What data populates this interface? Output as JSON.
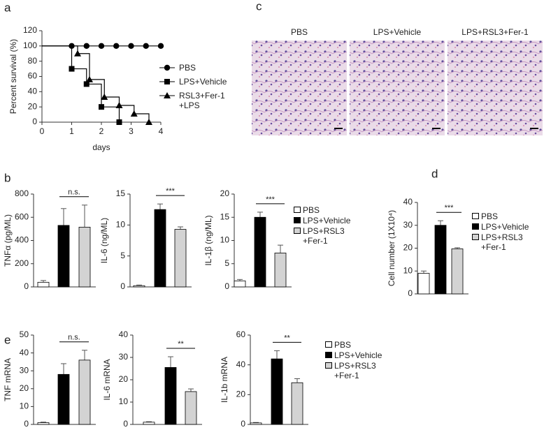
{
  "panel_labels": [
    "a",
    "b",
    "c",
    "d",
    "e"
  ],
  "histology": {
    "titles": [
      "PBS",
      "LPS+Vehicle",
      "LPS+RSL3+Fer-1"
    ]
  },
  "chart_data": [
    {
      "type": "step",
      "ylabel": "Percent survival (%)",
      "xlabel": "days",
      "xlim": [
        0,
        4
      ],
      "xticks": [
        0,
        1,
        2,
        3,
        4
      ],
      "ylim": [
        0,
        120
      ],
      "yticks": [
        0,
        20,
        40,
        60,
        80,
        100,
        120
      ],
      "series": [
        {
          "name": "PBS",
          "color": "#000000",
          "marker": "circle",
          "x": [
            0,
            1,
            1.5,
            2,
            2.5,
            3,
            3.5,
            4
          ],
          "values": [
            100,
            100,
            100,
            100,
            100,
            100,
            100,
            100
          ]
        },
        {
          "name": "LPS+Vehicle",
          "color": "#000000",
          "marker": "square",
          "x": [
            0,
            1,
            1.5,
            2,
            2.6
          ],
          "values": [
            100,
            70,
            50,
            20,
            0
          ]
        },
        {
          "name": "RSL3+Fer-1\n+LPS",
          "color": "#000000",
          "marker": "triangle",
          "x": [
            0,
            1.2,
            1.6,
            2.1,
            2.6,
            3.1,
            3.6
          ],
          "values": [
            100,
            90,
            56,
            33,
            22,
            11,
            0
          ]
        }
      ]
    },
    {
      "type": "bar",
      "ylabel": "TNFα (pg/ML)",
      "categories": [
        null,
        null,
        null
      ],
      "values": [
        40,
        530,
        515
      ],
      "errors": [
        15,
        145,
        190
      ],
      "colors": [
        "#ffffff",
        "#000000",
        "#d3d3d3"
      ],
      "ylim": [
        0,
        800
      ],
      "yticks": [
        0,
        200,
        400,
        600,
        800
      ],
      "annotation": "n.s."
    },
    {
      "type": "bar",
      "ylabel": "IL-6 (ng/ML)",
      "categories": [
        null,
        null,
        null
      ],
      "values": [
        0.2,
        12.5,
        9.3
      ],
      "errors": [
        0.1,
        0.9,
        0.4
      ],
      "colors": [
        "#ffffff",
        "#000000",
        "#d3d3d3"
      ],
      "ylim": [
        0,
        15
      ],
      "yticks": [
        0,
        5,
        10,
        15
      ],
      "annotation": "***"
    },
    {
      "type": "bar",
      "ylabel": "IL-1β (ng/ML)",
      "categories": [
        null,
        null,
        null
      ],
      "values": [
        1.3,
        15,
        7.3
      ],
      "errors": [
        0.3,
        1.1,
        1.7
      ],
      "colors": [
        "#ffffff",
        "#000000",
        "#d3d3d3"
      ],
      "ylim": [
        0,
        20
      ],
      "yticks": [
        0,
        5,
        10,
        15,
        20
      ],
      "annotation": "***",
      "legend": [
        "PBS",
        "LPS+Vehicle",
        "LPS+RSL3\n+Fer-1"
      ]
    },
    {
      "type": "bar",
      "ylabel": "Cell number (1X10⁴)",
      "categories": [
        null,
        null,
        null
      ],
      "values": [
        9,
        30,
        19.7
      ],
      "errors": [
        1,
        2,
        0.5
      ],
      "colors": [
        "#ffffff",
        "#000000",
        "#d3d3d3"
      ],
      "ylim": [
        0,
        40
      ],
      "yticks": [
        0,
        10,
        20,
        30,
        40
      ],
      "annotation": "***",
      "legend": [
        "PBS",
        "LPS+Vehicle",
        "LPS+RSL3\n+Fer-1"
      ]
    },
    {
      "type": "bar",
      "ylabel": "TNF mRNA",
      "categories": [
        null,
        null,
        null
      ],
      "values": [
        1,
        28,
        36
      ],
      "errors": [
        0.3,
        6,
        5.5
      ],
      "colors": [
        "#ffffff",
        "#000000",
        "#d3d3d3"
      ],
      "ylim": [
        0,
        50
      ],
      "yticks": [
        0,
        10,
        20,
        30,
        40,
        50
      ],
      "annotation": "n.s."
    },
    {
      "type": "bar",
      "ylabel": "IL-6 mRNA",
      "categories": [
        null,
        null,
        null
      ],
      "values": [
        1,
        25.5,
        14.7
      ],
      "errors": [
        0.2,
        4.8,
        1.2
      ],
      "colors": [
        "#ffffff",
        "#000000",
        "#d3d3d3"
      ],
      "ylim": [
        0,
        40
      ],
      "yticks": [
        0,
        10,
        20,
        30,
        40
      ],
      "annotation": "**"
    },
    {
      "type": "bar",
      "ylabel": "IL-1b mRNA",
      "categories": [
        null,
        null,
        null
      ],
      "values": [
        1,
        44,
        28
      ],
      "errors": [
        0.3,
        5.5,
        2.7
      ],
      "colors": [
        "#ffffff",
        "#000000",
        "#d3d3d3"
      ],
      "ylim": [
        0,
        60
      ],
      "yticks": [
        0,
        20,
        40,
        60
      ],
      "annotation": "**",
      "legend": [
        "PBS",
        "LPS+Vehicle",
        "LPS+RSL3\n+Fer-1"
      ]
    }
  ]
}
